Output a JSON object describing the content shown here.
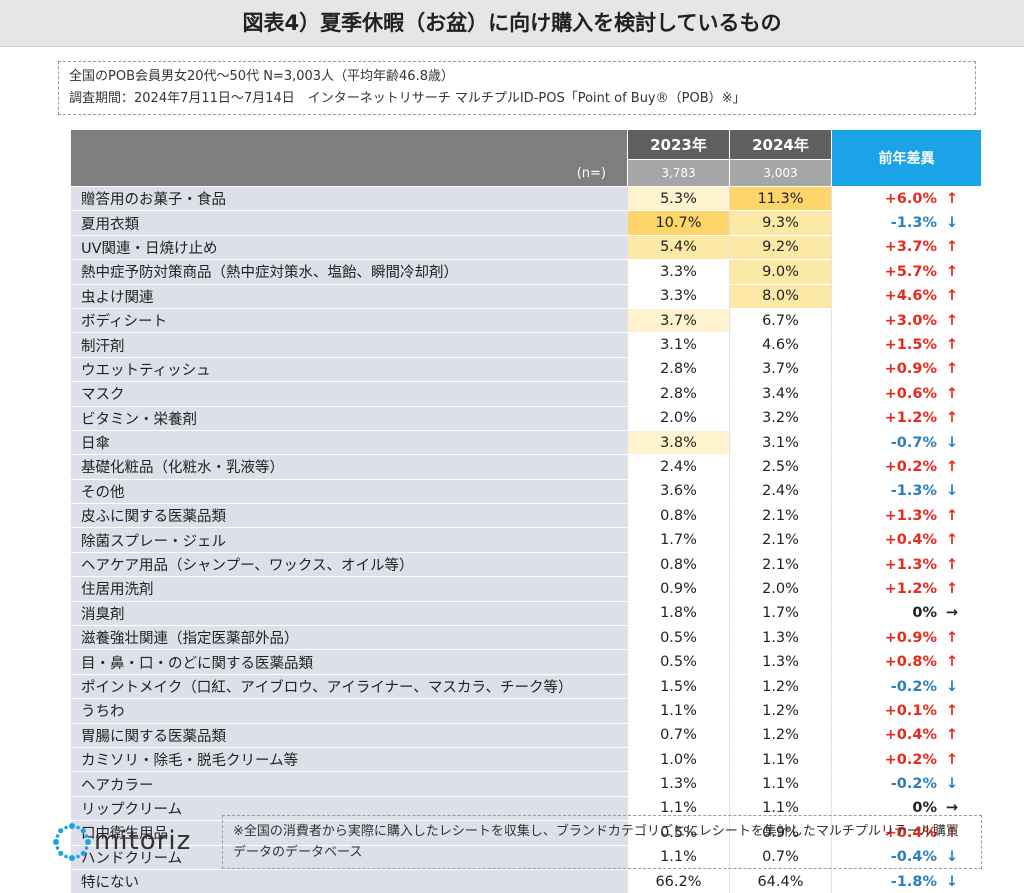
{
  "title": "図表4）夏季休暇（お盆）に向け購入を検討しているもの",
  "info": {
    "line1": "全国のPOB会員男女20代〜50代 N=3,003人（平均年齢46.8歳）",
    "line2": "調査期間：2024年7月11日〜7月14日　インターネットリサーチ マルチプルID-POS「Point of Buy®（POB）※」"
  },
  "table": {
    "n_label": "(n=)",
    "col_2023": "2023年",
    "col_2024": "2024年",
    "n_2023": "3,783",
    "n_2024": "3,003",
    "col_diff": "前年差異"
  },
  "chart_data": {
    "type": "table",
    "columns": [
      "2023年",
      "2024年",
      "前年差異"
    ],
    "rows": [
      {
        "label": "贈答用のお菓子・食品",
        "y2023": "5.3%",
        "y2024": "11.3%",
        "diff": "+6.0%",
        "dir": "up",
        "h2023": "h3",
        "h2024": "h2"
      },
      {
        "label": "夏用衣類",
        "y2023": "10.7%",
        "y2024": "9.3%",
        "diff": "-1.3%",
        "dir": "down",
        "h2023": "h2",
        "h2024": "h1"
      },
      {
        "label": "UV関連・日焼け止め",
        "y2023": "5.4%",
        "y2024": "9.2%",
        "diff": "+3.7%",
        "dir": "up",
        "h2023": "h1",
        "h2024": "h1"
      },
      {
        "label": "熱中症予防対策商品（熱中症対策水、塩飴、瞬間冷却剤）",
        "y2023": "3.3%",
        "y2024": "9.0%",
        "diff": "+5.7%",
        "dir": "up",
        "h2023": "",
        "h2024": "h1"
      },
      {
        "label": "虫よけ関連",
        "y2023": "3.3%",
        "y2024": "8.0%",
        "diff": "+4.6%",
        "dir": "up",
        "h2023": "",
        "h2024": "h1"
      },
      {
        "label": "ボディシート",
        "y2023": "3.7%",
        "y2024": "6.7%",
        "diff": "+3.0%",
        "dir": "up",
        "h2023": "h3",
        "h2024": ""
      },
      {
        "label": "制汗剤",
        "y2023": "3.1%",
        "y2024": "4.6%",
        "diff": "+1.5%",
        "dir": "up",
        "h2023": "",
        "h2024": ""
      },
      {
        "label": "ウエットティッシュ",
        "y2023": "2.8%",
        "y2024": "3.7%",
        "diff": "+0.9%",
        "dir": "up",
        "h2023": "",
        "h2024": ""
      },
      {
        "label": "マスク",
        "y2023": "2.8%",
        "y2024": "3.4%",
        "diff": "+0.6%",
        "dir": "up",
        "h2023": "",
        "h2024": ""
      },
      {
        "label": "ビタミン・栄養剤",
        "y2023": "2.0%",
        "y2024": "3.2%",
        "diff": "+1.2%",
        "dir": "up",
        "h2023": "",
        "h2024": ""
      },
      {
        "label": "日傘",
        "y2023": "3.8%",
        "y2024": "3.1%",
        "diff": "-0.7%",
        "dir": "down",
        "h2023": "h3",
        "h2024": ""
      },
      {
        "label": "基礎化粧品（化粧水・乳液等）",
        "y2023": "2.4%",
        "y2024": "2.5%",
        "diff": "+0.2%",
        "dir": "up",
        "h2023": "",
        "h2024": ""
      },
      {
        "label": "その他",
        "y2023": "3.6%",
        "y2024": "2.4%",
        "diff": "-1.3%",
        "dir": "down",
        "h2023": "",
        "h2024": ""
      },
      {
        "label": "皮ふに関する医薬品類",
        "y2023": "0.8%",
        "y2024": "2.1%",
        "diff": "+1.3%",
        "dir": "up",
        "h2023": "",
        "h2024": ""
      },
      {
        "label": "除菌スプレー・ジェル",
        "y2023": "1.7%",
        "y2024": "2.1%",
        "diff": "+0.4%",
        "dir": "up",
        "h2023": "",
        "h2024": ""
      },
      {
        "label": "ヘアケア用品（シャンプー、ワックス、オイル等）",
        "y2023": "0.8%",
        "y2024": "2.1%",
        "diff": "+1.3%",
        "dir": "up",
        "h2023": "",
        "h2024": ""
      },
      {
        "label": "住居用洗剤",
        "y2023": "0.9%",
        "y2024": "2.0%",
        "diff": "+1.2%",
        "dir": "up",
        "h2023": "",
        "h2024": ""
      },
      {
        "label": "消臭剤",
        "y2023": "1.8%",
        "y2024": "1.7%",
        "diff": "0%",
        "dir": "flat",
        "h2023": "",
        "h2024": ""
      },
      {
        "label": "滋養強壮関連（指定医薬部外品）",
        "y2023": "0.5%",
        "y2024": "1.3%",
        "diff": "+0.9%",
        "dir": "up",
        "h2023": "",
        "h2024": ""
      },
      {
        "label": "目・鼻・口・のどに関する医薬品類",
        "y2023": "0.5%",
        "y2024": "1.3%",
        "diff": "+0.8%",
        "dir": "up",
        "h2023": "",
        "h2024": ""
      },
      {
        "label": "ポイントメイク（口紅、アイブロウ、アイライナー、マスカラ、チーク等）",
        "y2023": "1.5%",
        "y2024": "1.2%",
        "diff": "-0.2%",
        "dir": "down",
        "h2023": "",
        "h2024": ""
      },
      {
        "label": "うちわ",
        "y2023": "1.1%",
        "y2024": "1.2%",
        "diff": "+0.1%",
        "dir": "up",
        "h2023": "",
        "h2024": ""
      },
      {
        "label": "胃腸に関する医薬品類",
        "y2023": "0.7%",
        "y2024": "1.2%",
        "diff": "+0.4%",
        "dir": "up",
        "h2023": "",
        "h2024": ""
      },
      {
        "label": "カミソリ・除毛・脱毛クリーム等",
        "y2023": "1.0%",
        "y2024": "1.1%",
        "diff": "+0.2%",
        "dir": "up",
        "h2023": "",
        "h2024": ""
      },
      {
        "label": "ヘアカラー",
        "y2023": "1.3%",
        "y2024": "1.1%",
        "diff": "-0.2%",
        "dir": "down",
        "h2023": "",
        "h2024": ""
      },
      {
        "label": "リップクリーム",
        "y2023": "1.1%",
        "y2024": "1.1%",
        "diff": "0%",
        "dir": "flat",
        "h2023": "",
        "h2024": ""
      },
      {
        "label": "口中衛生用品",
        "y2023": "0.5%",
        "y2024": "0.9%",
        "diff": "+0.4%",
        "dir": "up",
        "h2023": "",
        "h2024": ""
      },
      {
        "label": "ハンドクリーム",
        "y2023": "1.1%",
        "y2024": "0.7%",
        "diff": "-0.4%",
        "dir": "down",
        "h2023": "",
        "h2024": ""
      },
      {
        "label": "特にない",
        "y2023": "66.2%",
        "y2024": "64.4%",
        "diff": "-1.8%",
        "dir": "down",
        "h2023": "",
        "h2024": ""
      }
    ]
  },
  "arrows": {
    "up": "↑",
    "down": "↓",
    "flat": "→"
  },
  "colors": {
    "up": "#e8291c",
    "down": "#2a7fbf",
    "header_accent": "#1aa3e6",
    "highlight_strong": "#fdd56a"
  },
  "logo": {
    "text": "mitoriz",
    "icon": "star-burst-icon"
  },
  "footnote": "※全国の消費者から実際に購入したレシートを収集し、ブランドカテゴリごとにレシートを集計したマルチプルリテール購買データのデータベース"
}
